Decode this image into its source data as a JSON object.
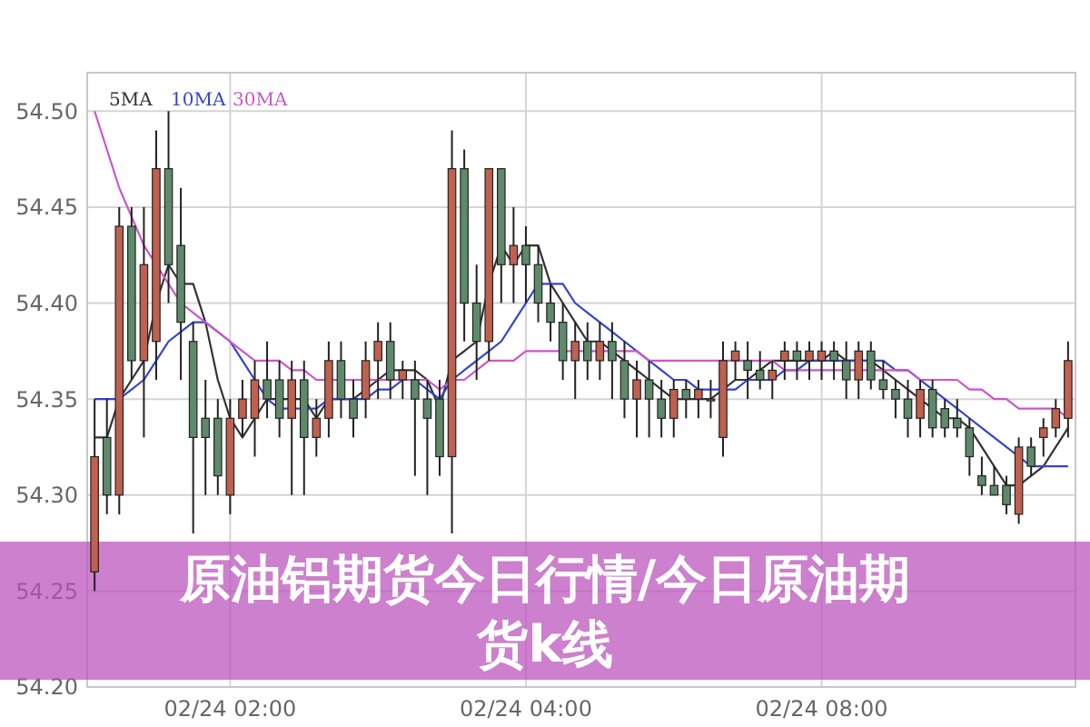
{
  "chart_data": {
    "type": "candlestick",
    "title": "原油铝期货今日行情/今日原油期货k线",
    "categories": [
      null,
      null,
      null,
      null,
      null,
      null,
      null,
      null,
      null,
      null,
      null,
      "02/24 02:00",
      null,
      null,
      null,
      null,
      null,
      null,
      null,
      null,
      null,
      null,
      null,
      null,
      null,
      null,
      null,
      null,
      null,
      null,
      null,
      null,
      null,
      null,
      null,
      "02/24 04:00",
      null,
      null,
      null,
      null,
      null,
      null,
      null,
      null,
      null,
      null,
      null,
      null,
      null,
      null,
      null,
      null,
      null,
      null,
      null,
      null,
      null,
      null,
      null,
      "02/24 08:00",
      null,
      null,
      null,
      null,
      null,
      null,
      null,
      null,
      null,
      null,
      null,
      null,
      null,
      null,
      null,
      null,
      null,
      null,
      null,
      null
    ],
    "ohlc": [
      [
        54.26,
        54.35,
        54.25,
        54.32
      ],
      [
        54.33,
        54.35,
        54.29,
        54.3
      ],
      [
        54.3,
        54.45,
        54.29,
        54.44
      ],
      [
        54.44,
        54.45,
        54.36,
        54.37
      ],
      [
        54.37,
        54.45,
        54.33,
        54.42
      ],
      [
        54.38,
        54.49,
        54.36,
        54.47
      ],
      [
        54.47,
        54.5,
        54.4,
        54.42
      ],
      [
        54.43,
        54.46,
        54.36,
        54.39
      ],
      [
        54.38,
        54.39,
        54.28,
        54.33
      ],
      [
        54.34,
        54.36,
        54.3,
        54.33
      ],
      [
        54.34,
        54.35,
        54.3,
        54.31
      ],
      [
        54.3,
        54.35,
        54.29,
        54.34
      ],
      [
        54.34,
        54.36,
        54.33,
        54.35
      ],
      [
        54.34,
        54.37,
        54.32,
        54.36
      ],
      [
        54.36,
        54.38,
        54.34,
        54.35
      ],
      [
        54.36,
        54.37,
        54.33,
        54.34
      ],
      [
        54.34,
        54.37,
        54.3,
        54.36
      ],
      [
        54.36,
        54.37,
        54.3,
        54.33
      ],
      [
        54.33,
        54.35,
        54.32,
        54.34
      ],
      [
        54.34,
        54.38,
        54.33,
        54.37
      ],
      [
        54.37,
        54.38,
        54.34,
        54.35
      ],
      [
        54.35,
        54.36,
        54.33,
        54.34
      ],
      [
        54.35,
        54.38,
        54.34,
        54.37
      ],
      [
        54.37,
        54.39,
        54.35,
        54.38
      ],
      [
        54.38,
        54.39,
        54.35,
        54.36
      ],
      [
        54.36,
        54.37,
        54.35,
        54.365
      ],
      [
        54.36,
        54.37,
        54.31,
        54.35
      ],
      [
        54.35,
        54.36,
        54.3,
        54.34
      ],
      [
        54.35,
        54.36,
        54.31,
        54.32
      ],
      [
        54.32,
        54.49,
        54.28,
        54.47
      ],
      [
        54.47,
        54.48,
        54.38,
        54.4
      ],
      [
        54.4,
        54.42,
        54.36,
        54.38
      ],
      [
        54.38,
        54.47,
        54.37,
        54.47
      ],
      [
        54.47,
        54.47,
        54.4,
        54.42
      ],
      [
        54.42,
        54.45,
        54.4,
        54.43
      ],
      [
        54.43,
        54.44,
        54.4,
        54.42
      ],
      [
        54.42,
        54.43,
        54.39,
        54.4
      ],
      [
        54.4,
        54.41,
        54.38,
        54.39
      ],
      [
        54.39,
        54.4,
        54.36,
        54.37
      ],
      [
        54.37,
        54.39,
        54.35,
        54.38
      ],
      [
        54.38,
        54.39,
        54.36,
        54.37
      ],
      [
        54.37,
        54.39,
        54.36,
        54.38
      ],
      [
        54.38,
        54.39,
        54.35,
        54.37
      ],
      [
        54.37,
        54.38,
        54.34,
        54.35
      ],
      [
        54.35,
        54.37,
        54.33,
        54.36
      ],
      [
        54.36,
        54.37,
        54.33,
        54.35
      ],
      [
        54.35,
        54.36,
        54.33,
        54.34
      ],
      [
        54.34,
        54.36,
        54.33,
        54.355
      ],
      [
        54.355,
        54.36,
        54.34,
        54.35
      ],
      [
        54.35,
        54.36,
        54.34,
        54.355
      ],
      [
        54.35,
        54.36,
        54.34,
        54.35
      ],
      [
        54.33,
        54.38,
        54.32,
        54.37
      ],
      [
        54.37,
        54.38,
        54.36,
        54.375
      ],
      [
        54.37,
        54.38,
        54.35,
        54.365
      ],
      [
        54.365,
        54.375,
        54.355,
        54.36
      ],
      [
        54.36,
        54.37,
        54.35,
        54.365
      ],
      [
        54.37,
        54.38,
        54.36,
        54.375
      ],
      [
        54.375,
        54.38,
        54.36,
        54.37
      ],
      [
        54.37,
        54.38,
        54.36,
        54.375
      ],
      [
        54.37,
        54.38,
        54.36,
        54.375
      ],
      [
        54.375,
        54.38,
        54.36,
        54.37
      ],
      [
        54.37,
        54.38,
        54.35,
        54.36
      ],
      [
        54.36,
        54.38,
        54.35,
        54.375
      ],
      [
        54.375,
        54.38,
        54.355,
        54.36
      ],
      [
        54.36,
        54.37,
        54.35,
        54.355
      ],
      [
        54.355,
        54.36,
        54.34,
        54.35
      ],
      [
        54.35,
        54.36,
        54.33,
        54.34
      ],
      [
        54.34,
        54.36,
        54.33,
        54.355
      ],
      [
        54.355,
        54.36,
        54.33,
        54.335
      ],
      [
        54.345,
        54.35,
        54.33,
        54.335
      ],
      [
        54.34,
        54.35,
        54.33,
        54.335
      ],
      [
        54.335,
        54.34,
        54.31,
        54.32
      ],
      [
        54.31,
        54.32,
        54.3,
        54.305
      ],
      [
        54.305,
        54.315,
        54.3,
        54.3
      ],
      [
        54.305,
        54.31,
        54.29,
        54.295
      ],
      [
        54.29,
        54.33,
        54.285,
        54.325
      ],
      [
        54.325,
        54.33,
        54.31,
        54.315
      ],
      [
        54.33,
        54.34,
        54.32,
        54.335
      ],
      [
        54.335,
        54.35,
        54.33,
        54.345
      ],
      [
        54.34,
        54.38,
        54.33,
        54.37
      ]
    ],
    "colors": [
      "#c0604f",
      "#5e8a6b",
      "#c0604f",
      "#5e8a6b",
      "#c0604f",
      "#c0604f",
      "#5e8a6b",
      "#5e8a6b",
      "#5e8a6b",
      "#5e8a6b",
      "#5e8a6b",
      "#c0604f",
      "#c0604f",
      "#c0604f",
      "#5e8a6b",
      "#5e8a6b",
      "#c0604f",
      "#5e8a6b",
      "#c0604f",
      "#c0604f",
      "#5e8a6b",
      "#5e8a6b",
      "#c0604f",
      "#c0604f",
      "#5e8a6b",
      "#c0604f",
      "#5e8a6b",
      "#5e8a6b",
      "#5e8a6b",
      "#c0604f",
      "#5e8a6b",
      "#5e8a6b",
      "#c0604f",
      "#5e8a6b",
      "#c0604f",
      "#5e8a6b",
      "#5e8a6b",
      "#5e8a6b",
      "#5e8a6b",
      "#c0604f",
      "#5e8a6b",
      "#c0604f",
      "#5e8a6b",
      "#5e8a6b",
      "#c0604f",
      "#5e8a6b",
      "#5e8a6b",
      "#c0604f",
      "#5e8a6b",
      "#c0604f",
      "#c0604f",
      "#c0604f",
      "#c0604f",
      "#5e8a6b",
      "#5e8a6b",
      "#c0604f",
      "#c0604f",
      "#5e8a6b",
      "#c0604f",
      "#c0604f",
      "#5e8a6b",
      "#5e8a6b",
      "#c0604f",
      "#5e8a6b",
      "#5e8a6b",
      "#5e8a6b",
      "#5e8a6b",
      "#c0604f",
      "#5e8a6b",
      "#5e8a6b",
      "#5e8a6b",
      "#5e8a6b",
      "#5e8a6b",
      "#5e8a6b",
      "#5e8a6b",
      "#c0604f",
      "#5e8a6b",
      "#c0604f",
      "#c0604f",
      "#c0604f"
    ],
    "series": [
      {
        "type": "line",
        "name": "5MA",
        "color": "#333333",
        "values": [
          54.33,
          54.33,
          54.35,
          54.36,
          54.37,
          54.4,
          54.42,
          54.41,
          54.41,
          54.39,
          54.36,
          54.34,
          54.33,
          54.34,
          54.35,
          54.35,
          54.35,
          54.35,
          54.34,
          54.35,
          54.35,
          54.35,
          54.355,
          54.36,
          54.365,
          54.365,
          54.365,
          54.36,
          54.345,
          54.37,
          54.375,
          54.38,
          54.41,
          54.43,
          54.42,
          54.43,
          54.43,
          54.41,
          54.4,
          54.39,
          54.38,
          54.38,
          54.375,
          54.37,
          54.365,
          54.36,
          54.355,
          54.35,
          54.35,
          54.35,
          54.35,
          54.355,
          54.36,
          54.36,
          54.365,
          54.37,
          54.37,
          54.37,
          54.37,
          54.37,
          54.375,
          54.37,
          54.37,
          54.37,
          54.365,
          54.36,
          54.355,
          54.35,
          54.345,
          54.34,
          54.34,
          54.335,
          54.325,
          54.315,
          54.305,
          54.305,
          54.31,
          54.315,
          54.325,
          54.335
        ]
      },
      {
        "type": "line",
        "name": "10MA",
        "color": "#3344cc",
        "values": [
          54.35,
          54.35,
          54.35,
          54.355,
          54.36,
          54.37,
          54.38,
          54.385,
          54.39,
          54.39,
          54.385,
          54.38,
          54.37,
          54.36,
          54.35,
          54.345,
          54.345,
          54.345,
          54.345,
          54.35,
          54.35,
          54.35,
          54.35,
          54.355,
          54.355,
          54.36,
          54.36,
          54.355,
          54.35,
          54.36,
          54.365,
          54.37,
          54.375,
          54.38,
          54.39,
          54.4,
          54.41,
          54.41,
          54.41,
          54.4,
          54.395,
          54.39,
          54.385,
          54.38,
          54.375,
          54.37,
          54.365,
          54.36,
          54.36,
          54.355,
          54.355,
          54.355,
          54.355,
          54.36,
          54.36,
          54.36,
          54.365,
          54.365,
          54.37,
          54.37,
          54.37,
          54.37,
          54.37,
          54.37,
          54.37,
          54.365,
          54.365,
          54.36,
          54.355,
          54.35,
          54.345,
          54.34,
          54.335,
          54.33,
          54.325,
          54.32,
          54.315,
          54.315,
          54.315,
          54.315
        ]
      },
      {
        "type": "line",
        "name": "30MA",
        "color": "#cc55cc",
        "values": [
          54.5,
          54.48,
          54.46,
          54.445,
          54.43,
          54.42,
          54.41,
          54.4,
          54.395,
          54.39,
          54.385,
          54.38,
          54.375,
          54.37,
          54.37,
          54.37,
          54.365,
          54.365,
          54.36,
          54.36,
          54.36,
          54.36,
          54.36,
          54.36,
          54.36,
          54.36,
          54.36,
          54.36,
          54.355,
          54.36,
          54.36,
          54.365,
          54.37,
          54.37,
          54.37,
          54.375,
          54.375,
          54.375,
          54.375,
          54.375,
          54.375,
          54.375,
          54.375,
          54.375,
          54.375,
          54.37,
          54.37,
          54.37,
          54.37,
          54.37,
          54.37,
          54.37,
          54.37,
          54.37,
          54.37,
          54.37,
          54.365,
          54.365,
          54.365,
          54.365,
          54.365,
          54.365,
          54.365,
          54.365,
          54.365,
          54.365,
          54.365,
          54.36,
          54.36,
          54.36,
          54.36,
          54.355,
          54.355,
          54.35,
          54.35,
          54.345,
          54.345,
          54.345,
          54.345,
          54.34
        ]
      }
    ],
    "ylim": [
      54.2,
      54.52
    ],
    "yticks": [
      {
        "value": 54.2,
        "label": "54.20"
      },
      {
        "value": 54.25,
        "label": "54.25"
      },
      {
        "value": 54.3,
        "label": "54.30"
      },
      {
        "value": 54.35,
        "label": "54.35"
      },
      {
        "value": 54.4,
        "label": "54.40"
      },
      {
        "value": 54.45,
        "label": "54.45"
      },
      {
        "value": 54.5,
        "label": "54.50"
      }
    ],
    "grid": true,
    "legend": "top left"
  }
}
